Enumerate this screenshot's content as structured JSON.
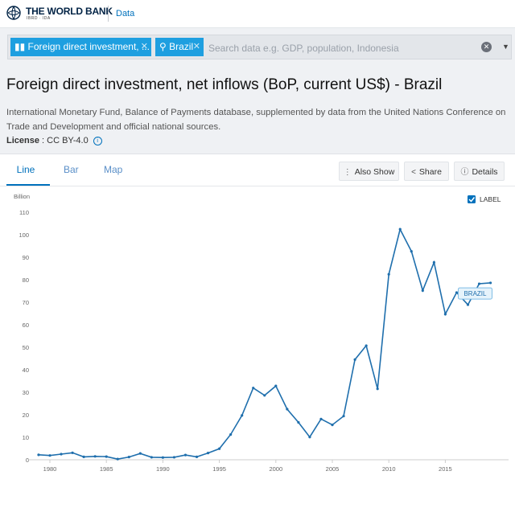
{
  "header": {
    "logo_name": "THE WORLD BANK",
    "logo_sub": "IBRD · IDA",
    "data_link": "Data"
  },
  "search": {
    "chip_indicator": "Foreign direct investment, ...",
    "chip_country": "Brazil",
    "placeholder": "Search data e.g. GDP, population, Indonesia"
  },
  "page": {
    "title": "Foreign direct investment, net inflows (BoP, current US$) - Brazil",
    "source": "International Monetary Fund, Balance of Payments database, supplemented by data from the United Nations Conference on Trade and Development and official national sources.",
    "license_label": "License",
    "license_value": " : CC BY-4.0"
  },
  "tabs": [
    "Line",
    "Bar",
    "Map"
  ],
  "actions": {
    "also_show": "Also Show",
    "share": "Share",
    "details": "Details"
  },
  "label_toggle": {
    "text": "LABEL",
    "checked": true
  },
  "colors": {
    "accent": "#0071bc",
    "chip": "#1e9fe0",
    "line": "#1f6fad"
  },
  "chart_data": {
    "type": "line",
    "ylabel": "Billion",
    "ylim": [
      0,
      110
    ],
    "yticks": [
      0,
      10,
      20,
      30,
      40,
      50,
      60,
      70,
      80,
      90,
      100,
      110
    ],
    "xticks": [
      1980,
      1985,
      1990,
      1995,
      2000,
      2005,
      2010,
      2015
    ],
    "grid": false,
    "series": [
      {
        "name": "BRAZIL",
        "x": [
          1979,
          1980,
          1981,
          1982,
          1983,
          1984,
          1985,
          1986,
          1987,
          1988,
          1989,
          1990,
          1991,
          1992,
          1993,
          1994,
          1995,
          1996,
          1997,
          1998,
          1999,
          2000,
          2001,
          2002,
          2003,
          2004,
          2005,
          2006,
          2007,
          2008,
          2009,
          2010,
          2011,
          2012,
          2013,
          2014,
          2015,
          2016,
          2017,
          2018,
          2019
        ],
        "values": [
          2.2,
          1.9,
          2.5,
          3.1,
          1.3,
          1.5,
          1.4,
          0.3,
          1.2,
          2.8,
          1.1,
          1.0,
          1.1,
          2.1,
          1.3,
          3.0,
          4.9,
          11.2,
          19.7,
          31.9,
          28.6,
          32.8,
          22.5,
          16.6,
          10.1,
          18.1,
          15.5,
          19.4,
          44.5,
          50.7,
          31.5,
          82.4,
          102.4,
          92.6,
          75.2,
          87.7,
          64.7,
          74.3,
          68.9,
          78.2,
          78.6
        ]
      }
    ]
  }
}
